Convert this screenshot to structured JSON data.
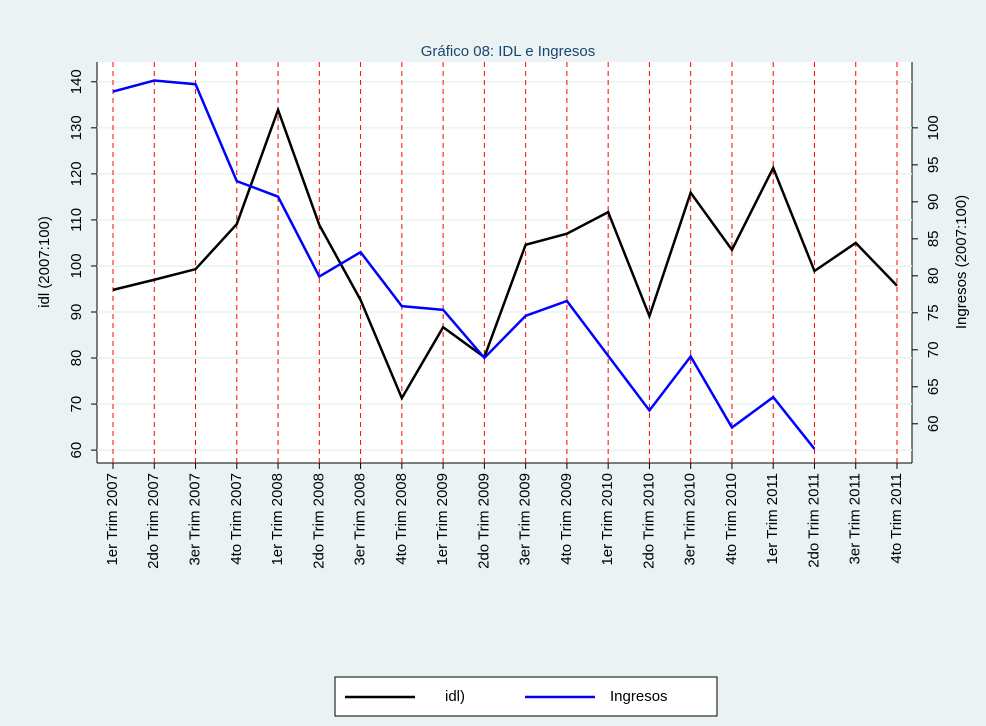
{
  "chart_data": {
    "type": "line",
    "title": "Gráfico 08: IDL e Ingresos",
    "ylabel": "idl (2007:100)",
    "y2label": "Ingresos (2007:100)",
    "categories": [
      "1er Trim 2007",
      "2do Trim 2007",
      "3er Trim 2007",
      "4to Trim 2007",
      "1er Trim 2008",
      "2do Trim 2008",
      "3er Trim 2008",
      "4to Trim 2008",
      "1er Trim 2009",
      "2do Trim 2009",
      "3er Trim 2009",
      "4to Trim 2009",
      "1er Trim 2010",
      "2do Trim 2010",
      "3er Trim 2010",
      "4to Trim 2010",
      "1er Trim 2011",
      "2do Trim 2011",
      "3er Trim 2011",
      "4to Trim 2011"
    ],
    "series": [
      {
        "name": "idl)",
        "color": "#000000",
        "values": [
          94.8,
          97,
          99.3,
          109.1,
          133.9,
          108.9,
          92.6,
          71.3,
          86.7,
          80.2,
          104.6,
          107,
          111.7,
          89.1,
          115.9,
          103.5,
          121.3,
          98.9,
          105,
          95.7
        ]
      },
      {
        "name": "Ingresos",
        "color": "#0000ff",
        "axis": "y2",
        "values": [
          104.9,
          106.4,
          105.9,
          92.8,
          90.7,
          79.9,
          83.2,
          75.9,
          75.4,
          68.9,
          74.6,
          76.6,
          69.2,
          61.8,
          69.1,
          59.5,
          63.6,
          56.6,
          null,
          null
        ]
      }
    ],
    "ylim": [
      57.2,
      144.3
    ],
    "yticks": [
      60,
      70,
      80,
      90,
      100,
      110,
      120,
      130,
      140
    ],
    "y2lim": [
      54.7,
      108.9
    ],
    "y2ticks": [
      60,
      65,
      70,
      75,
      80,
      85,
      90,
      95,
      100
    ],
    "grid": true,
    "category_lines_color": "#ff0000"
  }
}
